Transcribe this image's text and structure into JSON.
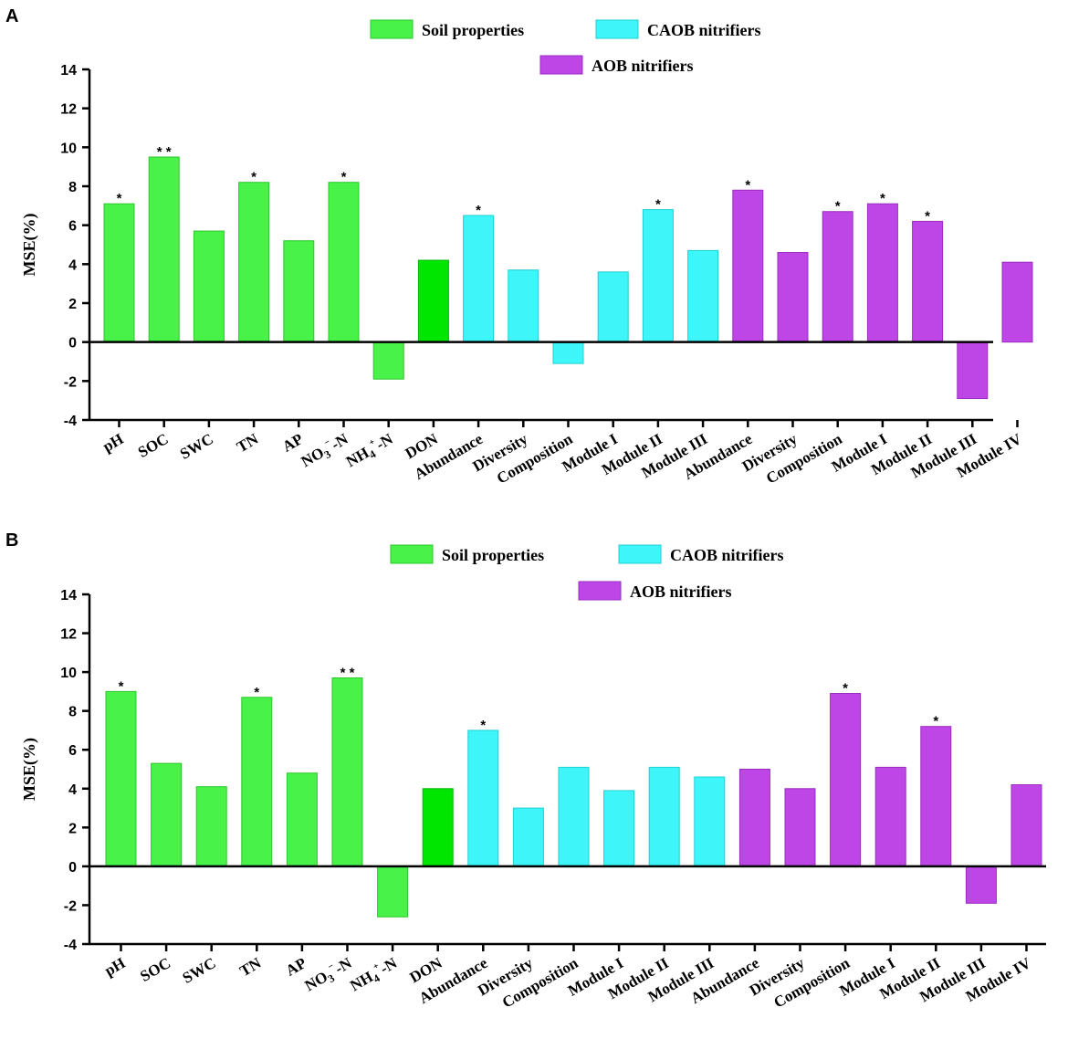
{
  "colors": {
    "soil": "#48f248",
    "soil_dark": "#00e600",
    "caob": "#3ef5fa",
    "aob": "#bf46e6"
  },
  "chart_data": [
    {
      "panel": "A",
      "type": "bar",
      "ylabel": "MSE(%)",
      "ylim": [
        -4,
        14
      ],
      "yticks": [
        -4,
        -2,
        0,
        2,
        4,
        6,
        8,
        10,
        12,
        14
      ],
      "legend": [
        {
          "label": "Soil properties",
          "group": "soil"
        },
        {
          "label": "CAOB nitrifiers",
          "group": "caob"
        },
        {
          "label": "AOB nitrifiers",
          "group": "aob"
        }
      ],
      "categories": [
        "pH",
        "SOC",
        "SWC",
        "TN",
        "AP",
        "NO3⁻-N",
        "NH4⁺-N",
        "DON",
        "Abundance",
        "Diversity",
        "Composition",
        "Module I",
        "Module II",
        "Module III",
        "Abundance",
        "Diversity",
        "Composition",
        "Module I",
        "Module II",
        "Module III",
        "Module IV"
      ],
      "groups": [
        "soil",
        "soil",
        "soil",
        "soil",
        "soil",
        "soil",
        "soil",
        "soil_dark",
        "caob",
        "caob",
        "caob",
        "caob",
        "caob",
        "caob",
        "aob",
        "aob",
        "aob",
        "aob",
        "aob",
        "aob",
        "aob"
      ],
      "values": [
        7.1,
        9.5,
        5.7,
        8.2,
        5.2,
        8.2,
        -1.9,
        4.2,
        6.5,
        3.7,
        -1.1,
        3.6,
        6.8,
        4.7,
        7.8,
        4.6,
        6.7,
        7.1,
        6.2,
        -2.9,
        4.1
      ],
      "significance": [
        "*",
        "* *",
        "",
        "*",
        "",
        "*",
        "",
        "",
        "*",
        "",
        "",
        "",
        "*",
        "",
        "*",
        "",
        "*",
        "*",
        "*",
        "",
        ""
      ]
    },
    {
      "panel": "B",
      "type": "bar",
      "ylabel": "MSE(%)",
      "ylim": [
        -4,
        14
      ],
      "yticks": [
        -4,
        -2,
        0,
        2,
        4,
        6,
        8,
        10,
        12,
        14
      ],
      "legend": [
        {
          "label": "Soil properties",
          "group": "soil"
        },
        {
          "label": "CAOB nitrifiers",
          "group": "caob"
        },
        {
          "label": "AOB nitrifiers",
          "group": "aob"
        }
      ],
      "categories": [
        "pH",
        "SOC",
        "SWC",
        "TN",
        "AP",
        "NO3⁻-N",
        "NH4⁺-N",
        "DON",
        "Abundance",
        "Diversity",
        "Composition",
        "Module I",
        "Module II",
        "Module III",
        "Abundance",
        "Diversity",
        "Composition",
        "Module I",
        "Module II",
        "Module III",
        "Module IV"
      ],
      "groups": [
        "soil",
        "soil",
        "soil",
        "soil",
        "soil",
        "soil",
        "soil",
        "soil_dark",
        "caob",
        "caob",
        "caob",
        "caob",
        "caob",
        "caob",
        "aob",
        "aob",
        "aob",
        "aob",
        "aob",
        "aob",
        "aob"
      ],
      "values": [
        9.0,
        5.3,
        4.1,
        8.7,
        4.8,
        9.7,
        -2.6,
        4.0,
        7.0,
        3.0,
        5.1,
        3.9,
        5.1,
        4.6,
        5.0,
        4.0,
        8.9,
        5.1,
        7.2,
        -1.9,
        4.2
      ],
      "significance": [
        "*",
        "",
        "",
        "*",
        "",
        "* *",
        "",
        "",
        "*",
        "",
        "",
        "",
        "",
        "",
        "",
        "",
        "*",
        "",
        "*",
        "",
        ""
      ]
    }
  ]
}
